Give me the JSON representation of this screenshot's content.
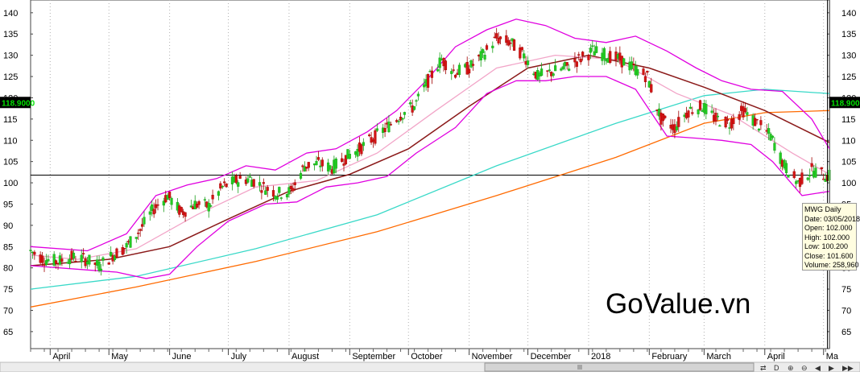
{
  "chart_data": {
    "type": "candlestick",
    "symbol": "MWG",
    "period": "Daily",
    "ylim": [
      61,
      143
    ],
    "y_ticks": [
      65,
      70,
      75,
      80,
      85,
      90,
      95,
      100,
      105,
      110,
      115,
      120,
      125,
      130,
      135,
      140
    ],
    "x_range": [
      "2017-03-22",
      "2018-05-04"
    ],
    "month_labels": [
      {
        "date": "2017-04-01",
        "label": "April"
      },
      {
        "date": "2017-05-01",
        "label": "May"
      },
      {
        "date": "2017-06-01",
        "label": "June"
      },
      {
        "date": "2017-07-01",
        "label": "July"
      },
      {
        "date": "2017-08-01",
        "label": "August"
      },
      {
        "date": "2017-09-01",
        "label": "September"
      },
      {
        "date": "2017-10-01",
        "label": "October"
      },
      {
        "date": "2017-11-01",
        "label": "November"
      },
      {
        "date": "2017-12-01",
        "label": "December"
      },
      {
        "date": "2018-01-01",
        "label": "2018"
      },
      {
        "date": "2018-02-01",
        "label": "February"
      },
      {
        "date": "2018-03-01",
        "label": "March"
      },
      {
        "date": "2018-04-01",
        "label": "April"
      },
      {
        "date": "2018-05-01",
        "label": "Ma"
      }
    ],
    "last_price_marker": "118.9000",
    "last_price_value": 118.9,
    "horizontal_line_value": 101.8,
    "cursor_date": "2018-05-03",
    "price_path": [
      [
        "2017-03-22",
        84
      ],
      [
        "2017-03-29",
        82
      ],
      [
        "2017-04-05",
        81.5
      ],
      [
        "2017-04-12",
        82.5
      ],
      [
        "2017-04-19",
        82
      ],
      [
        "2017-04-26",
        80.5
      ],
      [
        "2017-05-03",
        83
      ],
      [
        "2017-05-10",
        85
      ],
      [
        "2017-05-17",
        89
      ],
      [
        "2017-05-24",
        94
      ],
      [
        "2017-05-31",
        97
      ],
      [
        "2017-06-07",
        93
      ],
      [
        "2017-06-14",
        95
      ],
      [
        "2017-06-21",
        94.5
      ],
      [
        "2017-06-28",
        99
      ],
      [
        "2017-07-05",
        100.5
      ],
      [
        "2017-07-12",
        101
      ],
      [
        "2017-07-19",
        99
      ],
      [
        "2017-07-26",
        97.5
      ],
      [
        "2017-08-02",
        98
      ],
      [
        "2017-08-09",
        104
      ],
      [
        "2017-08-16",
        104.5
      ],
      [
        "2017-08-23",
        103.5
      ],
      [
        "2017-08-30",
        106
      ],
      [
        "2017-09-06",
        108
      ],
      [
        "2017-09-13",
        110.5
      ],
      [
        "2017-09-20",
        113
      ],
      [
        "2017-09-27",
        116
      ],
      [
        "2017-10-04",
        118
      ],
      [
        "2017-10-11",
        124
      ],
      [
        "2017-10-18",
        129
      ],
      [
        "2017-10-25",
        126
      ],
      [
        "2017-11-01",
        127
      ],
      [
        "2017-11-08",
        130
      ],
      [
        "2017-11-15",
        134
      ],
      [
        "2017-11-22",
        133
      ],
      [
        "2017-11-29",
        130
      ],
      [
        "2017-12-06",
        125
      ],
      [
        "2017-12-13",
        126
      ],
      [
        "2017-12-20",
        127
      ],
      [
        "2017-12-27",
        129
      ],
      [
        "2018-01-03",
        131
      ],
      [
        "2018-01-10",
        130
      ],
      [
        "2018-01-17",
        129
      ],
      [
        "2018-01-24",
        127
      ],
      [
        "2018-01-31",
        125
      ],
      [
        "2018-02-07",
        115
      ],
      [
        "2018-02-14",
        113
      ],
      [
        "2018-02-21",
        117
      ],
      [
        "2018-02-28",
        118
      ],
      [
        "2018-03-07",
        115
      ],
      [
        "2018-03-14",
        114
      ],
      [
        "2018-03-21",
        117
      ],
      [
        "2018-03-28",
        114
      ],
      [
        "2018-04-04",
        111
      ],
      [
        "2018-04-11",
        104
      ],
      [
        "2018-04-18",
        100
      ],
      [
        "2018-04-25",
        103
      ],
      [
        "2018-05-03",
        101.6
      ]
    ],
    "series": [
      {
        "kind": "ma-long",
        "color": "#ff6a00",
        "points": [
          [
            "2017-03-22",
            70.8
          ],
          [
            "2017-05-15",
            75.5
          ],
          [
            "2017-07-15",
            81.5
          ],
          [
            "2017-09-15",
            88.5
          ],
          [
            "2017-11-15",
            97
          ],
          [
            "2018-01-15",
            106
          ],
          [
            "2018-03-01",
            114
          ],
          [
            "2018-04-01",
            116.5
          ],
          [
            "2018-05-04",
            117
          ]
        ]
      },
      {
        "kind": "ma-medium",
        "color": "#39d9c8",
        "points": [
          [
            "2017-03-22",
            75
          ],
          [
            "2017-05-15",
            78
          ],
          [
            "2017-07-15",
            84.5
          ],
          [
            "2017-09-15",
            92.5
          ],
          [
            "2017-11-15",
            104
          ],
          [
            "2018-01-15",
            114
          ],
          [
            "2018-03-01",
            120.5
          ],
          [
            "2018-04-01",
            122
          ],
          [
            "2018-05-04",
            121
          ]
        ]
      },
      {
        "kind": "ma-short",
        "color": "#8b1a1a",
        "points": [
          [
            "2017-03-22",
            80.5
          ],
          [
            "2017-05-01",
            82
          ],
          [
            "2017-06-01",
            85
          ],
          [
            "2017-07-01",
            91.5
          ],
          [
            "2017-08-01",
            98
          ],
          [
            "2017-09-01",
            102
          ],
          [
            "2017-10-01",
            108
          ],
          [
            "2017-11-01",
            118
          ],
          [
            "2017-12-01",
            127
          ],
          [
            "2018-01-01",
            130
          ],
          [
            "2018-02-01",
            127
          ],
          [
            "2018-03-01",
            122.5
          ],
          [
            "2018-04-01",
            117
          ],
          [
            "2018-05-04",
            109.5
          ]
        ]
      },
      {
        "kind": "ma-fast",
        "color": "#f2a5c8",
        "points": [
          [
            "2017-03-22",
            83
          ],
          [
            "2017-04-15",
            82
          ],
          [
            "2017-05-15",
            84.5
          ],
          [
            "2017-06-15",
            92.5
          ],
          [
            "2017-07-15",
            99
          ],
          [
            "2017-08-15",
            100.5
          ],
          [
            "2017-09-15",
            107
          ],
          [
            "2017-10-15",
            117
          ],
          [
            "2017-11-15",
            127
          ],
          [
            "2017-12-15",
            130
          ],
          [
            "2018-01-15",
            129
          ],
          [
            "2018-02-15",
            121
          ],
          [
            "2018-03-15",
            116
          ],
          [
            "2018-04-15",
            107
          ],
          [
            "2018-05-04",
            102
          ]
        ]
      },
      {
        "kind": "bollinger-upper",
        "color": "#e000e0",
        "points": [
          [
            "2017-03-22",
            85
          ],
          [
            "2017-04-20",
            84
          ],
          [
            "2017-05-10",
            88
          ],
          [
            "2017-05-25",
            97
          ],
          [
            "2017-06-10",
            99.5
          ],
          [
            "2017-06-25",
            101
          ],
          [
            "2017-07-10",
            104
          ],
          [
            "2017-07-25",
            103
          ],
          [
            "2017-08-10",
            107
          ],
          [
            "2017-08-25",
            108
          ],
          [
            "2017-09-10",
            112
          ],
          [
            "2017-09-25",
            117
          ],
          [
            "2017-10-10",
            124
          ],
          [
            "2017-10-25",
            132
          ],
          [
            "2017-11-10",
            136
          ],
          [
            "2017-11-25",
            138.5
          ],
          [
            "2017-12-10",
            137
          ],
          [
            "2017-12-25",
            134
          ],
          [
            "2018-01-10",
            133
          ],
          [
            "2018-01-25",
            134.5
          ],
          [
            "2018-02-10",
            131
          ],
          [
            "2018-02-25",
            127
          ],
          [
            "2018-03-10",
            124
          ],
          [
            "2018-03-25",
            122
          ],
          [
            "2018-04-10",
            121.5
          ],
          [
            "2018-04-25",
            115
          ],
          [
            "2018-05-04",
            108
          ]
        ]
      },
      {
        "kind": "bollinger-lower",
        "color": "#e000e0",
        "points": [
          [
            "2017-03-22",
            80.5
          ],
          [
            "2017-04-20",
            79.5
          ],
          [
            "2017-05-05",
            79
          ],
          [
            "2017-05-20",
            77.5
          ],
          [
            "2017-06-01",
            78.5
          ],
          [
            "2017-06-15",
            85
          ],
          [
            "2017-07-01",
            91
          ],
          [
            "2017-07-20",
            95
          ],
          [
            "2017-08-05",
            95.5
          ],
          [
            "2017-08-20",
            99
          ],
          [
            "2017-09-05",
            100
          ],
          [
            "2017-09-20",
            101.5
          ],
          [
            "2017-10-05",
            107
          ],
          [
            "2017-10-25",
            113
          ],
          [
            "2017-11-10",
            121
          ],
          [
            "2017-11-25",
            124
          ],
          [
            "2017-12-10",
            124
          ],
          [
            "2017-12-25",
            125
          ],
          [
            "2018-01-10",
            125
          ],
          [
            "2018-01-25",
            122
          ],
          [
            "2018-02-10",
            111
          ],
          [
            "2018-02-25",
            110.5
          ],
          [
            "2018-03-10",
            110
          ],
          [
            "2018-03-25",
            109
          ],
          [
            "2018-04-05",
            105
          ],
          [
            "2018-04-20",
            97
          ],
          [
            "2018-05-04",
            98
          ]
        ]
      }
    ]
  },
  "watermark": "GoValue.vn",
  "tooltip": {
    "lines": [
      "MWG Daily",
      "Date: 03/05/2018",
      "Open: 102.000",
      "High: 102.000",
      "Low: 100.200",
      "Close: 101.600",
      "Volume: 258,960"
    ]
  },
  "scrollbar": {
    "nav_icons": [
      "arrow-left-icon",
      "arrow-right-icon",
      "zoom-icon",
      "scroll-left-icon",
      "scroll-right-icon"
    ],
    "glyphs": [
      "⇄",
      "D",
      "⊕",
      "⊖",
      "◀",
      "▶",
      "▶▶"
    ]
  }
}
